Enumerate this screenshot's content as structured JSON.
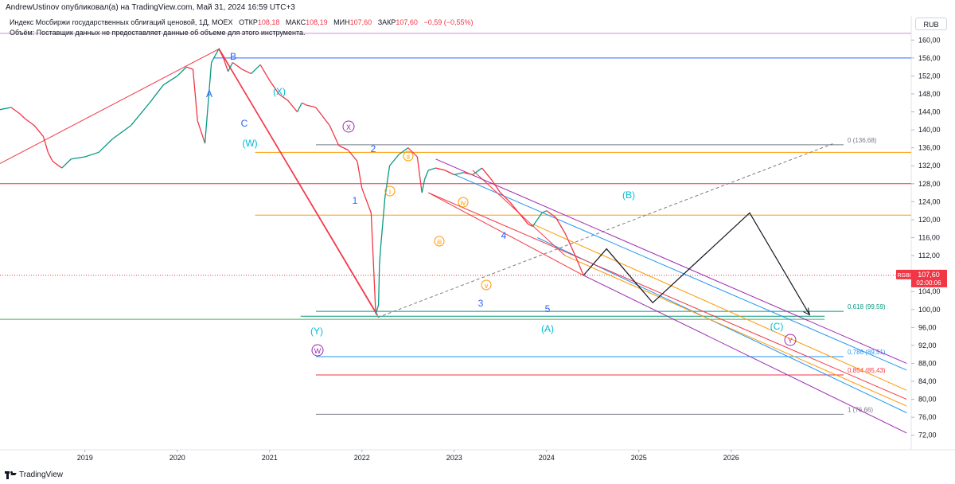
{
  "header": {
    "publisher_line": "AndrewUstinov опубликовал(а) на TradingView.com, Май 31, 2024 16:59 UTC+3",
    "instrument": "Индекс Мосбиржи государственных облигаций ценовой, 1Д, MOEX",
    "open_label": "ОТКР",
    "open_value": "108,18",
    "high_label": "МАКС",
    "high_value": "108,19",
    "low_label": "МИН",
    "low_value": "107,60",
    "close_label": "ЗАКР",
    "close_value": "107,60",
    "change": "−0,59 (−0,55%)",
    "volume_note": "Объём: Поставщик данных не предоставляет данные об объеме для этого инструмента."
  },
  "currency": "RUB",
  "price_badge": {
    "symbol": "RGBI",
    "price": "107,60",
    "countdown": "02:00:06"
  },
  "footer": {
    "brand": "TradingView"
  },
  "colors": {
    "up": "#089981",
    "down": "#f23645",
    "wave_blue": "#2962ff",
    "wave_cyan": "#00bcd4",
    "wave_purple": "#9c27b0",
    "wave_orange": "#ff9800",
    "fib_blue": "#4caf50"
  },
  "chart_data": {
    "type": "line",
    "title": "Индекс Мосбиржи государственных облигаций ценовой, 1Д, MOEX",
    "ylabel": "RUB",
    "ylim": [
      70,
      162
    ],
    "xlim": [
      2018.08,
      2027.95
    ],
    "y_ticks": [
      160,
      156,
      152,
      148,
      144,
      140,
      136,
      132,
      128,
      124,
      120,
      116,
      112,
      108,
      104,
      100,
      96,
      92,
      88,
      84,
      80,
      76,
      72
    ],
    "y_tick_labels": [
      "160,00",
      "156,00",
      "152,00",
      "148,00",
      "144,00",
      "140,00",
      "136,00",
      "132,00",
      "128,00",
      "124,00",
      "120,00",
      "116,00",
      "112,00",
      "108,00",
      "104,00",
      "100,00",
      "96,00",
      "92,00",
      "88,00",
      "84,00",
      "80,00",
      "76,00",
      "72,00"
    ],
    "x_ticks": [
      2019,
      2020,
      2021,
      2022,
      2023,
      2024,
      2025,
      2026
    ],
    "x_tick_labels": [
      "2019",
      "2020",
      "2021",
      "2022",
      "2023",
      "2024",
      "2025",
      "2026"
    ],
    "series": [
      {
        "name": "RGBI",
        "x": [
          2018.08,
          2018.2,
          2018.3,
          2018.35,
          2018.45,
          2018.55,
          2018.6,
          2018.65,
          2018.75,
          2018.85,
          2019.0,
          2019.15,
          2019.3,
          2019.5,
          2019.7,
          2019.85,
          2020.0,
          2020.1,
          2020.17,
          2020.22,
          2020.3,
          2020.37,
          2020.45,
          2020.5,
          2020.55,
          2020.6,
          2020.7,
          2020.8,
          2020.9,
          2021.0,
          2021.1,
          2021.2,
          2021.3,
          2021.35,
          2021.4,
          2021.5,
          2021.65,
          2021.75,
          2021.85,
          2021.95,
          2022.0,
          2022.1,
          2022.15,
          2022.18,
          2022.19,
          2022.2,
          2022.25,
          2022.3,
          2022.4,
          2022.5,
          2022.6,
          2022.65,
          2022.68,
          2022.72,
          2022.8,
          2022.9,
          2023.0,
          2023.1,
          2023.2,
          2023.3,
          2023.4,
          2023.5,
          2023.6,
          2023.7,
          2023.8,
          2023.85,
          2023.9,
          2023.95,
          2024.0,
          2024.1,
          2024.2,
          2024.3,
          2024.4
        ],
        "values": [
          144.5,
          145.0,
          143.5,
          142.5,
          141.0,
          138.5,
          135.0,
          133.0,
          131.5,
          133.5,
          134.0,
          135.0,
          138.0,
          141.0,
          146.0,
          150.0,
          152.0,
          154.0,
          153.5,
          142.0,
          137.0,
          155.0,
          158.0,
          156.0,
          153.0,
          155.0,
          153.5,
          152.5,
          154.5,
          151.0,
          148.0,
          146.5,
          144.0,
          146.0,
          145.5,
          145.0,
          141.0,
          136.5,
          135.5,
          133.0,
          127.0,
          121.5,
          99.0,
          101.0,
          110.0,
          113.0,
          125.0,
          132.0,
          134.5,
          136.0,
          134.0,
          126.0,
          129.0,
          131.0,
          131.5,
          131.0,
          130.0,
          130.5,
          130.0,
          131.5,
          129.0,
          126.0,
          124.0,
          121.5,
          119.0,
          118.5,
          120.0,
          121.5,
          122.0,
          120.5,
          117.0,
          112.5,
          107.6
        ]
      }
    ],
    "wave_labels": [
      {
        "text": "B",
        "color": "blue"
      },
      {
        "text": "A",
        "color": "blue"
      },
      {
        "text": "C",
        "color": "blue"
      },
      {
        "text": "(X)",
        "color": "cyan"
      },
      {
        "text": "(W)",
        "color": "cyan"
      },
      {
        "text": "X",
        "color": "purple"
      },
      {
        "text": "2",
        "color": "blue"
      },
      {
        "text": "ii",
        "color": "orange"
      },
      {
        "text": "1",
        "color": "blue"
      },
      {
        "text": "i",
        "color": "orange"
      },
      {
        "text": "iv",
        "color": "orange"
      },
      {
        "text": "iii",
        "color": "orange"
      },
      {
        "text": "4",
        "color": "blue"
      },
      {
        "text": "(B)",
        "color": "cyan"
      },
      {
        "text": "v",
        "color": "orange"
      },
      {
        "text": "3",
        "color": "blue"
      },
      {
        "text": "5",
        "color": "blue"
      },
      {
        "text": "(A)",
        "color": "cyan"
      },
      {
        "text": "(C)",
        "color": "cyan"
      },
      {
        "text": "(Y)",
        "color": "cyan"
      },
      {
        "text": "W",
        "color": "purple"
      },
      {
        "text": "Y",
        "color": "purple"
      }
    ],
    "fib_levels": [
      {
        "label": "0 (136,68)",
        "value": 136.68
      },
      {
        "label": "0,618 (99,59)",
        "value": 99.59
      },
      {
        "label": "0,786 (89,51)",
        "value": 89.51
      },
      {
        "label": "0,854 (85,43)",
        "value": 85.43
      },
      {
        "label": "1 (76,66)",
        "value": 76.66
      }
    ],
    "horizontal_levels": [
      156.0,
      135.0,
      128.0,
      121.0,
      98.5,
      97.8
    ],
    "projection": {
      "name": "forecast path",
      "points": [
        [
          2024.4,
          107.6
        ],
        [
          2024.65,
          113.5
        ],
        [
          2025.15,
          101.5
        ],
        [
          2026.2,
          121.5
        ],
        [
          2026.85,
          98.8
        ]
      ]
    }
  }
}
